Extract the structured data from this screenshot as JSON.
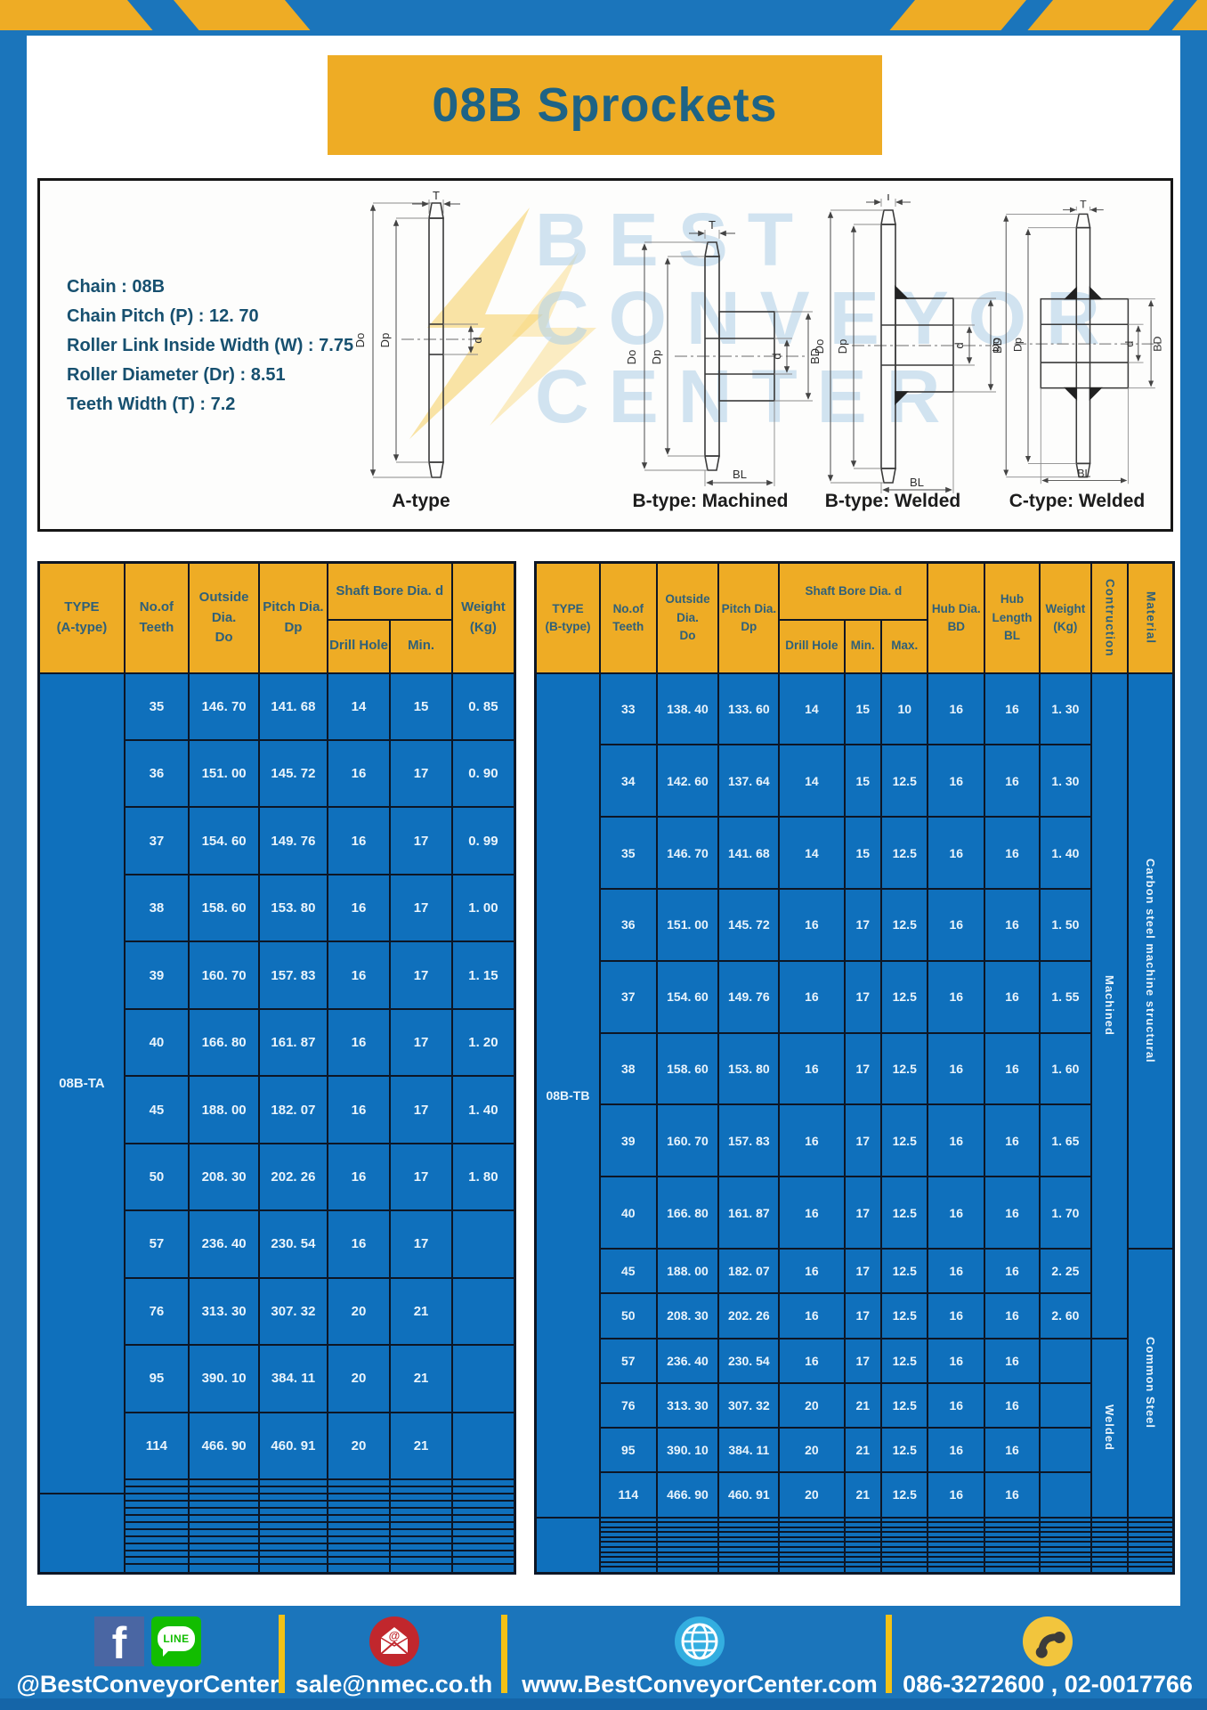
{
  "title": "08B Sprockets",
  "specs": "Chain : 08B\nChain Pitch (P) : 12. 70\nRoller Link Inside Width (W) : 7.75\nRoller Diameter (Dr) : 8.51\nTeeth Width (T) : 7.2",
  "diagrams": {
    "captions": [
      "A-type",
      "B-type: Machined",
      "B-type: Welded",
      "C-type: Welded"
    ],
    "dims": {
      "T": "T",
      "Do": "Do",
      "Dp": "Dp",
      "d": "d",
      "BD": "BD",
      "BL": "BL"
    },
    "watermark_lines": [
      "BEST",
      "CONVEYOR",
      "CENTER"
    ]
  },
  "left_table": {
    "headers": {
      "type": "TYPE\n(A-type)",
      "teeth": "No.of\nTeeth",
      "outside": "Outside\nDia.\nDo",
      "pitch": "Pitch Dia.\nDp",
      "shaft_bore": "Shaft Bore Dia. d",
      "drill": "Drill Hole",
      "min": "Min.",
      "weight": "Weight\n(Kg)"
    },
    "type_label": "08B-TA",
    "rows": [
      [
        "35",
        "146. 70",
        "141. 68",
        "14",
        "15",
        "0. 85"
      ],
      [
        "36",
        "151. 00",
        "145. 72",
        "16",
        "17",
        "0. 90"
      ],
      [
        "37",
        "154. 60",
        "149. 76",
        "16",
        "17",
        "0. 99"
      ],
      [
        "38",
        "158. 60",
        "153. 80",
        "16",
        "17",
        "1. 00"
      ],
      [
        "39",
        "160. 70",
        "157. 83",
        "16",
        "17",
        "1. 15"
      ],
      [
        "40",
        "166. 80",
        "161. 87",
        "16",
        "17",
        "1. 20"
      ],
      [
        "45",
        "188. 00",
        "182. 07",
        "16",
        "17",
        "1. 40"
      ],
      [
        "50",
        "208. 30",
        "202. 26",
        "16",
        "17",
        "1. 80"
      ],
      [
        "57",
        "236. 40",
        "230. 54",
        "16",
        "17",
        ""
      ],
      [
        "76",
        "313. 30",
        "307. 32",
        "20",
        "21",
        ""
      ],
      [
        "95",
        "390. 10",
        "384. 11",
        "20",
        "21",
        ""
      ],
      [
        "114",
        "466. 90",
        "460. 91",
        "20",
        "21",
        ""
      ]
    ],
    "empty_rows_in_section": 2,
    "extra_section_rows": 11
  },
  "right_table": {
    "headers": {
      "type": "TYPE\n(B-type)",
      "teeth": "No.of\nTeeth",
      "outside": "Outside\nDia.\nDo",
      "pitch": "Pitch Dia.\nDp",
      "shaft_bore": "Shaft Bore Dia. d",
      "drill": "Drill Hole",
      "min": "Min.",
      "max": "Max.",
      "hub_dia": "Hub Dia.\nBD",
      "hub_length": "Hub\nLength\nBL",
      "weight": "Weight\n(Kg)",
      "construction": "Contruction",
      "material": "Material"
    },
    "type_label": "08B-TB",
    "rows": [
      [
        "33",
        "138. 40",
        "133. 60",
        "14",
        "15",
        "10",
        "16",
        "16",
        "1. 30"
      ],
      [
        "34",
        "142. 60",
        "137. 64",
        "14",
        "15",
        "12.5",
        "16",
        "16",
        "1. 30"
      ],
      [
        "35",
        "146. 70",
        "141. 68",
        "14",
        "15",
        "12.5",
        "16",
        "16",
        "1. 40"
      ],
      [
        "36",
        "151. 00",
        "145. 72",
        "16",
        "17",
        "12.5",
        "16",
        "16",
        "1. 50"
      ],
      [
        "37",
        "154. 60",
        "149. 76",
        "16",
        "17",
        "12.5",
        "16",
        "16",
        "1. 55"
      ],
      [
        "38",
        "158. 60",
        "153. 80",
        "16",
        "17",
        "12.5",
        "16",
        "16",
        "1. 60"
      ],
      [
        "39",
        "160. 70",
        "157. 83",
        "16",
        "17",
        "12.5",
        "16",
        "16",
        "1. 65"
      ],
      [
        "40",
        "166. 80",
        "161. 87",
        "16",
        "17",
        "12.5",
        "16",
        "16",
        "1. 70"
      ],
      [
        "45",
        "188. 00",
        "182. 07",
        "16",
        "17",
        "12.5",
        "16",
        "16",
        "2. 25"
      ],
      [
        "50",
        "208. 30",
        "202. 26",
        "16",
        "17",
        "12.5",
        "16",
        "16",
        "2. 60"
      ],
      [
        "57",
        "236. 40",
        "230. 54",
        "16",
        "17",
        "12.5",
        "16",
        "16",
        ""
      ],
      [
        "76",
        "313. 30",
        "307. 32",
        "20",
        "21",
        "12.5",
        "16",
        "16",
        ""
      ],
      [
        "95",
        "390. 10",
        "384. 11",
        "20",
        "21",
        "12.5",
        "16",
        "16",
        ""
      ],
      [
        "114",
        "466. 90",
        "460. 91",
        "20",
        "21",
        "12.5",
        "16",
        "16",
        ""
      ]
    ],
    "construction_groups": [
      {
        "label": "Machined",
        "rows": 10
      },
      {
        "label": "Welded",
        "rows": 4
      }
    ],
    "material_groups": [
      {
        "label": "Carbon steel  machine  structural",
        "rows": 8
      },
      {
        "label": "Common  Steel",
        "rows": 6
      }
    ],
    "extra_section_rows": 11
  },
  "footer": {
    "line_text": "LINE",
    "items": [
      {
        "icon": "facebook-line-icons",
        "label": "@BestConveyorCenter"
      },
      {
        "icon": "email-icon",
        "label": "sale@nmec.co.th"
      },
      {
        "icon": "globe-icon",
        "label": "www.BestConveyorCenter.com"
      },
      {
        "icon": "phone-icon",
        "label": "086-3272600 , 02-0017766"
      }
    ]
  },
  "colors": {
    "frame_blue": "#1b75bb",
    "cell_blue": "#0f70bc",
    "gold": "#eeac25",
    "grid": "#0d1625",
    "title_text": "#1e6385",
    "header_text": "#2f6079",
    "cell_text": "#e9f4fc",
    "spec_text": "#17506f",
    "footer_bottom": "#1565a8",
    "divider_yellow": "#f2c116"
  }
}
